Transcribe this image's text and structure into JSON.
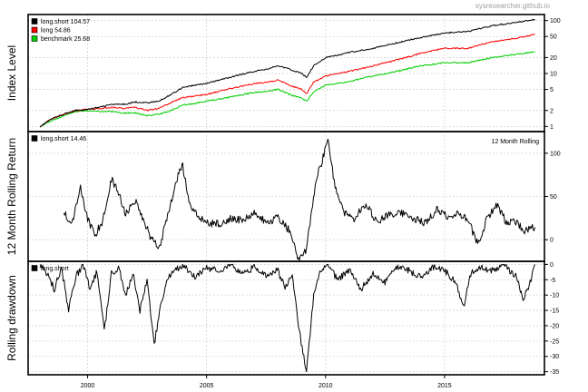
{
  "watermark": "sysresearcher.github.io",
  "x_ticks": [
    "2000",
    "2005",
    "2010",
    "2015"
  ],
  "panels": {
    "index": {
      "ylabel": "Index Level",
      "legend": [
        {
          "label": "long.short 104.57",
          "color": "#000000"
        },
        {
          "label": "long  54.86",
          "color": "#ff0000"
        },
        {
          "label": "benchmark  25.68",
          "color": "#00cd00"
        }
      ],
      "ticks": [
        "100",
        "50",
        "20",
        "10",
        "5",
        "2",
        "1"
      ]
    },
    "rolling": {
      "ylabel": "12 Month Rolling Return",
      "legend": [
        {
          "label": "long.short 14.46",
          "color": "#000000"
        }
      ],
      "note": "12 Month Rolling",
      "ticks": [
        "100",
        "50",
        "0"
      ]
    },
    "drawdown": {
      "ylabel": "Rolling drawdown",
      "legend": [
        {
          "label": "long.short",
          "color": "#000000"
        }
      ],
      "ticks": [
        "0",
        "-5",
        "-10",
        "-15",
        "-20",
        "-25",
        "-30",
        "-35"
      ]
    }
  },
  "chart_data": [
    {
      "type": "line",
      "ylabel": "Index Level",
      "y_scale": "log",
      "ylim": [
        0.8,
        130
      ],
      "xlim": [
        1997.5,
        2019.2
      ],
      "series": [
        {
          "name": "long.short 104.57",
          "color": "#000000",
          "x": [
            1998.0,
            1998.5,
            1999.0,
            1999.5,
            2000.0,
            2000.5,
            2001.0,
            2001.5,
            2002.0,
            2002.5,
            2003.0,
            2003.5,
            2004.0,
            2005.0,
            2006.0,
            2007.0,
            2007.5,
            2008.0,
            2008.5,
            2009.0,
            2009.2,
            2009.5,
            2010.0,
            2010.5,
            2011.0,
            2012.0,
            2013.0,
            2014.0,
            2015.0,
            2016.0,
            2017.0,
            2018.0,
            2018.8
          ],
          "y": [
            1.0,
            1.4,
            1.7,
            2.0,
            2.1,
            2.3,
            2.6,
            2.6,
            2.9,
            2.8,
            3.0,
            4.0,
            5.5,
            6.5,
            8.5,
            11,
            12,
            14,
            12,
            10,
            8.5,
            14,
            20,
            22,
            25,
            30,
            38,
            48,
            58,
            62,
            80,
            92,
            104.57
          ]
        },
        {
          "name": "long  54.86",
          "color": "#ff0000",
          "x": [
            1998.0,
            1998.5,
            1999.0,
            1999.5,
            2000.0,
            2000.5,
            2001.0,
            2001.5,
            2002.0,
            2002.5,
            2003.0,
            2003.5,
            2004.0,
            2005.0,
            2006.0,
            2007.0,
            2007.5,
            2008.0,
            2008.5,
            2009.0,
            2009.2,
            2009.5,
            2010.0,
            2010.5,
            2011.0,
            2012.0,
            2013.0,
            2014.0,
            2015.0,
            2016.0,
            2017.0,
            2018.0,
            2018.8
          ],
          "y": [
            1.0,
            1.4,
            1.7,
            2.0,
            2.1,
            2.2,
            2.3,
            2.2,
            2.3,
            2.0,
            2.2,
            2.8,
            3.5,
            4.0,
            5.2,
            6.5,
            6.8,
            7.5,
            6.0,
            5.0,
            4.2,
            6.8,
            9,
            10,
            11,
            14,
            18,
            24,
            30,
            30,
            40,
            46,
            54.86
          ]
        },
        {
          "name": "benchmark  25.68",
          "color": "#00cd00",
          "x": [
            1998.0,
            1998.5,
            1999.0,
            1999.5,
            2000.0,
            2000.5,
            2001.0,
            2001.5,
            2002.0,
            2002.5,
            2003.0,
            2003.5,
            2004.0,
            2005.0,
            2006.0,
            2007.0,
            2007.5,
            2008.0,
            2008.5,
            2009.0,
            2009.2,
            2009.5,
            2010.0,
            2010.5,
            2011.0,
            2012.0,
            2013.0,
            2014.0,
            2015.0,
            2016.0,
            2017.0,
            2018.0,
            2018.8
          ],
          "y": [
            1.0,
            1.3,
            1.6,
            1.9,
            2.0,
            1.9,
            1.9,
            1.8,
            1.8,
            1.6,
            1.7,
            2.0,
            2.5,
            3.0,
            3.6,
            4.4,
            4.6,
            5.0,
            4.0,
            3.4,
            3.0,
            4.5,
            6,
            6.5,
            7,
            9,
            11,
            14,
            16,
            16,
            20,
            23,
            25.68
          ]
        }
      ]
    },
    {
      "type": "line",
      "ylabel": "12 Month Rolling Return",
      "ylim": [
        -25,
        125
      ],
      "xlim": [
        1997.5,
        2019.2
      ],
      "series": [
        {
          "name": "long.short 14.46",
          "color": "#000000",
          "x": [
            1999.0,
            1999.3,
            1999.7,
            2000.0,
            2000.3,
            2000.6,
            2001.0,
            2001.3,
            2001.6,
            2002.0,
            2002.3,
            2002.7,
            2003.0,
            2003.4,
            2003.8,
            2004.0,
            2004.3,
            2004.7,
            2005.0,
            2005.5,
            2006.0,
            2006.5,
            2007.0,
            2007.5,
            2008.0,
            2008.5,
            2008.9,
            2009.2,
            2009.6,
            2009.9,
            2010.1,
            2010.4,
            2010.8,
            2011.2,
            2011.7,
            2012.2,
            2012.7,
            2013.2,
            2013.7,
            2014.2,
            2014.7,
            2015.2,
            2015.6,
            2016.0,
            2016.4,
            2016.8,
            2017.2,
            2017.6,
            2018.0,
            2018.4,
            2018.8
          ],
          "y": [
            35,
            15,
            60,
            25,
            5,
            20,
            70,
            55,
            30,
            45,
            25,
            0,
            -10,
            30,
            75,
            85,
            40,
            25,
            20,
            18,
            25,
            22,
            30,
            20,
            25,
            10,
            -25,
            -10,
            70,
            95,
            115,
            60,
            30,
            25,
            40,
            20,
            30,
            30,
            25,
            20,
            35,
            25,
            30,
            22,
            -5,
            25,
            40,
            20,
            20,
            10,
            14.46
          ]
        }
      ]
    },
    {
      "type": "line",
      "ylabel": "Rolling drawdown",
      "ylim": [
        -36,
        1
      ],
      "xlim": [
        1997.5,
        2019.2
      ],
      "series": [
        {
          "name": "long.short",
          "color": "#000000",
          "x": [
            1998.0,
            1998.3,
            1998.6,
            1998.9,
            1999.2,
            1999.5,
            1999.8,
            2000.1,
            2000.4,
            2000.7,
            2001.0,
            2001.3,
            2001.6,
            2001.9,
            2002.2,
            2002.5,
            2002.8,
            2003.1,
            2003.4,
            2003.7,
            2004.0,
            2004.5,
            2005.0,
            2005.5,
            2006.0,
            2006.5,
            2007.0,
            2007.5,
            2008.0,
            2008.3,
            2008.6,
            2008.9,
            2009.2,
            2009.5,
            2009.8,
            2010.1,
            2010.5,
            2011.0,
            2011.5,
            2012.0,
            2012.5,
            2013.0,
            2013.5,
            2014.0,
            2014.5,
            2015.0,
            2015.5,
            2015.8,
            2016.1,
            2016.5,
            2017.0,
            2017.5,
            2018.0,
            2018.3,
            2018.6,
            2018.8
          ],
          "y": [
            0,
            -3,
            -8,
            -1,
            -15,
            -4,
            0,
            -8,
            -2,
            -22,
            -3,
            -1,
            -10,
            -3,
            -15,
            -5,
            -26,
            -12,
            -4,
            -2,
            0,
            -4,
            -1,
            -2,
            0,
            -3,
            -1,
            -4,
            -2,
            -8,
            -3,
            -22,
            -35,
            -10,
            -2,
            0,
            -5,
            -2,
            -8,
            -3,
            -6,
            -1,
            -2,
            -4,
            -1,
            -2,
            -6,
            -14,
            -3,
            -1,
            -2,
            0,
            -4,
            -11,
            -6,
            0
          ]
        }
      ]
    }
  ]
}
